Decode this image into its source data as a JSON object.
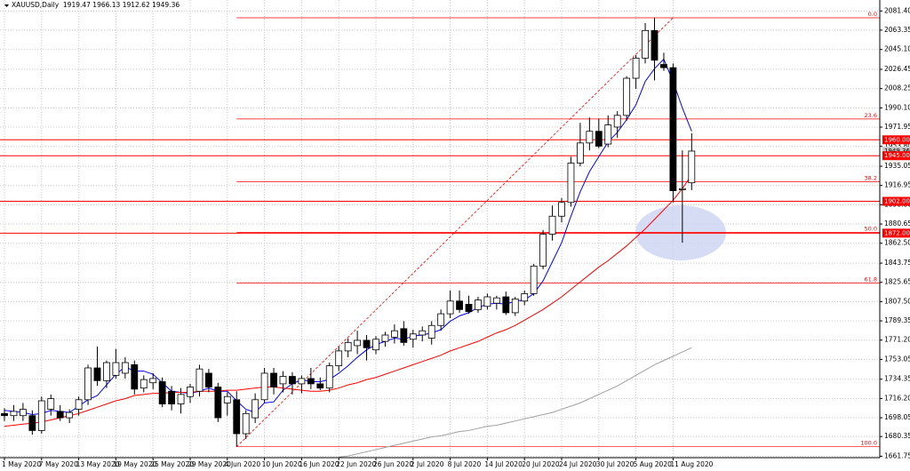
{
  "chart_data": {
    "type": "candlestick",
    "title": "XAUUSD,Daily  1919.47 1966.13 1912.62 1949.36",
    "categories": [
      "1 May 2020",
      null,
      null,
      null,
      "7 May 2020",
      null,
      null,
      null,
      "13 May 2020",
      null,
      null,
      null,
      "19 May 2020",
      null,
      null,
      null,
      "25 May 2020",
      null,
      null,
      null,
      "29 May 2020",
      null,
      null,
      null,
      "4 Jun 2020",
      null,
      null,
      null,
      "10 Jun 2020",
      null,
      null,
      null,
      "16 Jun 2020",
      null,
      null,
      null,
      "22 Jun 2020",
      null,
      null,
      null,
      "26 Jun 2020",
      null,
      null,
      null,
      "2 Jul 2020",
      null,
      null,
      null,
      "8 Jul 2020",
      null,
      null,
      null,
      "14 Jul 2020",
      null,
      null,
      null,
      "20 Jul 2020",
      null,
      null,
      null,
      "24 Jul 2020",
      null,
      null,
      null,
      "30 Jul 2020",
      null,
      null,
      null,
      "5 Aug 2020",
      null,
      null,
      null,
      "11 Aug 2020",
      null,
      null
    ],
    "open": [
      1702,
      1700,
      1700,
      1700,
      1686,
      1706,
      1704,
      1698,
      1706,
      1715,
      1745,
      1733,
      1738,
      1740,
      1748,
      1726,
      1731,
      1732,
      1723,
      1711,
      1718,
      1723,
      1740,
      1727,
      1712,
      1715,
      1683,
      1698,
      1715,
      1740,
      1730,
      1737,
      1730,
      1735,
      1730,
      1726,
      1747,
      1761,
      1766,
      1771,
      1762,
      1770,
      1774,
      1782,
      1772,
      1776,
      1773,
      1785,
      1796,
      1808,
      1805,
      1800,
      1803,
      1806,
      1812,
      1797,
      1808,
      1815,
      1841,
      1871,
      1888,
      1901,
      1938,
      1957,
      1968,
      1956,
      1972,
      1983,
      2018,
      2037,
      2063,
      2031,
      2028,
      1913,
      1919.47
    ],
    "high": [
      1707,
      1710,
      1712,
      1705,
      1718,
      1720,
      1710,
      1706,
      1718,
      1748,
      1765,
      1752,
      1763,
      1755,
      1752,
      1738,
      1740,
      1736,
      1728,
      1726,
      1730,
      1748,
      1744,
      1731,
      1722,
      1723,
      1705,
      1721,
      1745,
      1745,
      1742,
      1741,
      1738,
      1745,
      1736,
      1750,
      1765,
      1773,
      1780,
      1776,
      1775,
      1779,
      1786,
      1789,
      1781,
      1784,
      1789,
      1800,
      1818,
      1818,
      1813,
      1812,
      1815,
      1813,
      1817,
      1812,
      1818,
      1843,
      1875,
      1898,
      1905,
      1944,
      1976,
      1981,
      1980,
      1983,
      1987,
      2020,
      2040,
      2070,
      2075,
      2042,
      2032,
      1950,
      1966.13
    ],
    "low": [
      1695,
      1695,
      1695,
      1682,
      1683,
      1700,
      1695,
      1693,
      1700,
      1710,
      1728,
      1726,
      1735,
      1735,
      1720,
      1722,
      1725,
      1708,
      1705,
      1702,
      1712,
      1718,
      1722,
      1694,
      1700,
      1670.7,
      1678,
      1693,
      1712,
      1720,
      1722,
      1720,
      1721,
      1725,
      1724,
      1722,
      1742,
      1755,
      1758,
      1752,
      1758,
      1765,
      1768,
      1766,
      1764,
      1770,
      1767,
      1780,
      1792,
      1797,
      1796,
      1797,
      1800,
      1800,
      1795,
      1794,
      1804,
      1813,
      1838,
      1865,
      1882,
      1897,
      1935,
      1950,
      1952,
      1953,
      1962,
      1978,
      2008,
      2032,
      2016,
      2025,
      1901,
      1863,
      1912.62
    ],
    "close": [
      1700,
      1704,
      1706,
      1686,
      1714,
      1716,
      1698,
      1703,
      1715,
      1745,
      1733,
      1750,
      1750,
      1750,
      1725,
      1734,
      1735,
      1711,
      1711,
      1720,
      1727,
      1744,
      1727,
      1698,
      1718,
      1683,
      1702,
      1715,
      1740,
      1727,
      1737,
      1730,
      1735,
      1730,
      1726,
      1747,
      1761,
      1769,
      1771,
      1764,
      1772,
      1776,
      1780,
      1769,
      1777,
      1780,
      1785,
      1796,
      1808,
      1800,
      1798,
      1809,
      1812,
      1811,
      1797,
      1810,
      1815,
      1841,
      1871,
      1888,
      1901,
      1938,
      1957,
      1968,
      1954,
      1974,
      1983,
      2018,
      2037,
      2063,
      2035,
      2028,
      1912,
      1914,
      1949.36
    ],
    "overlays": [
      {
        "color": "#0000ff",
        "values": [
          1705,
          1704,
          1703,
          1701,
          1702,
          1705,
          1704,
          1703,
          1709,
          1715,
          1719,
          1729,
          1739,
          1746,
          1742,
          1742,
          1739,
          1731,
          1723,
          1722,
          1721,
          1723,
          1726,
          1723,
          1723,
          1714,
          1706,
          1703,
          1712,
          1713,
          1724,
          1730,
          1734,
          1732,
          1732,
          1734,
          1740,
          1747,
          1755,
          1762,
          1767,
          1770,
          1773,
          1772,
          1775,
          1776,
          1778,
          1781,
          1789,
          1794,
          1797,
          1802,
          1805,
          1806,
          1805,
          1808,
          1809,
          1815,
          1827,
          1845,
          1863,
          1888,
          1911,
          1930,
          1944,
          1958,
          1967,
          1979,
          1993,
          2015,
          2027,
          2036,
          2015,
          1990,
          1968
        ]
      },
      {
        "color": "#ff0000",
        "values": [
          1690,
          1691,
          1692,
          1693,
          1694,
          1696,
          1698,
          1700,
          1702,
          1705,
          1708,
          1711,
          1714,
          1716,
          1719,
          1720,
          1721,
          1721,
          1722,
          1722,
          1722,
          1723,
          1723,
          1723,
          1724,
          1724,
          1725,
          1726,
          1727,
          1727,
          1726,
          1725,
          1724,
          1723,
          1723,
          1724,
          1726,
          1729,
          1731,
          1734,
          1736,
          1739,
          1742,
          1745,
          1748,
          1751,
          1754,
          1757,
          1761,
          1764,
          1767,
          1770,
          1774,
          1778,
          1781,
          1785,
          1790,
          1795,
          1800,
          1806,
          1812,
          1819,
          1826,
          1833,
          1840,
          1846,
          1853,
          1860,
          1868,
          1876,
          1885,
          1894,
          1903,
          1914,
          1927
        ]
      },
      {
        "color": "#a0a0a0",
        "values": [
          null,
          null,
          null,
          null,
          null,
          null,
          null,
          null,
          null,
          null,
          null,
          null,
          null,
          null,
          null,
          null,
          null,
          null,
          null,
          null,
          null,
          null,
          null,
          null,
          null,
          null,
          null,
          null,
          null,
          null,
          null,
          null,
          null,
          null,
          null,
          null,
          1661,
          1662,
          1664,
          1666,
          1668,
          1670,
          1672,
          1674,
          1676,
          1678,
          1680,
          1681,
          1683,
          1685,
          1686,
          1688,
          1690,
          1691,
          1693,
          1695,
          1697,
          1699,
          1701,
          1703,
          1706,
          1709,
          1712,
          1716,
          1720,
          1724,
          1728,
          1733,
          1738,
          1743,
          1748,
          1752,
          1756,
          1760,
          1764
        ]
      }
    ],
    "fib_levels": [
      {
        "label": "0.0",
        "price": 2075
      },
      {
        "label": "23.6",
        "price": 1979.6
      },
      {
        "label": "38.2",
        "price": 1920.6
      },
      {
        "label": "50.0",
        "price": 1872.85
      },
      {
        "label": "61.8",
        "price": 1825.1
      },
      {
        "label": "100.0",
        "price": 1670.7
      }
    ],
    "current_price": 1949.36,
    "levels": [
      {
        "value": 1960,
        "label": "1960.00"
      },
      {
        "value": 1945,
        "label": "1945.00"
      },
      {
        "value": 1902,
        "label": "1902.00"
      },
      {
        "value": 1872,
        "label": "1872.00"
      }
    ],
    "level_color": "#ff0000",
    "ylim": [
      1660.4,
      2091.75
    ],
    "yticks": [
      {
        "value": 2081.4,
        "label": "2081.40"
      },
      2063.35,
      {
        "value": 2045.1,
        "label": "2045.10"
      },
      2026.45,
      2008.25,
      {
        "value": 1990.1,
        "label": "1990.10"
      },
      1971.95,
      {
        "value": 1953.8,
        "label": "1953.80"
      },
      1935.05,
      1916.95,
      {
        "value": 1898.8,
        "label": "1898.80"
      },
      1880.65,
      {
        "value": 1862.5,
        "label": "1862.50"
      },
      1843.75,
      1825.65,
      {
        "value": 1807.5,
        "label": "1807.50"
      },
      1789.35,
      {
        "value": 1771.2,
        "label": "1771.20"
      },
      1753.05,
      1734.35,
      {
        "value": 1716.2,
        "label": "1716.20"
      },
      1698.05,
      1680.35,
      1661.75
    ],
    "grid": true
  }
}
